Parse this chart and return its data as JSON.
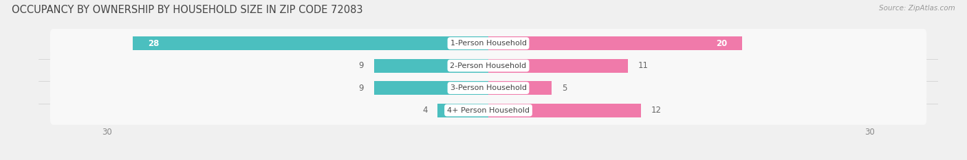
{
  "title": "OCCUPANCY BY OWNERSHIP BY HOUSEHOLD SIZE IN ZIP CODE 72083",
  "source": "Source: ZipAtlas.com",
  "categories": [
    "1-Person Household",
    "2-Person Household",
    "3-Person Household",
    "4+ Person Household"
  ],
  "owner_values": [
    28,
    9,
    9,
    4
  ],
  "renter_values": [
    20,
    11,
    5,
    12
  ],
  "owner_color": "#4BBFBF",
  "renter_color": "#F07AAA",
  "background_color": "#f0f0f0",
  "bar_bg_color": "#e8e8e8",
  "row_bg_color": "#f8f8f8",
  "axis_limit": 30,
  "bar_height": 0.62,
  "label_fontsize": 8.0,
  "title_fontsize": 10.5,
  "value_fontsize": 8.5,
  "tick_fontsize": 8.5,
  "source_fontsize": 7.5,
  "legend_fontsize": 8.5,
  "owner_text_colors": [
    "#ffffff",
    "#666666",
    "#666666",
    "#666666"
  ],
  "renter_text_colors": [
    "#ffffff",
    "#666666",
    "#666666",
    "#666666"
  ]
}
